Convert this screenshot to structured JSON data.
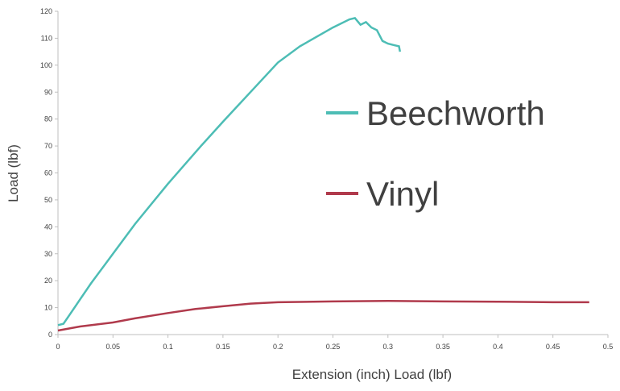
{
  "chart_data": {
    "type": "line",
    "xlabel": "Extension (inch) Load (lbf)",
    "ylabel": "Load (lbf)",
    "xlim": [
      0,
      0.5
    ],
    "xticks": [
      0,
      0.05,
      0.1,
      0.15,
      0.2,
      0.25,
      0.3,
      0.35,
      0.4,
      0.45,
      0.5
    ],
    "ylim": [
      0,
      120
    ],
    "yticks": [
      0,
      10,
      20,
      30,
      40,
      50,
      60,
      70,
      80,
      90,
      100,
      110,
      120
    ],
    "grid": false,
    "legend": "right",
    "series": [
      {
        "name": "Beechworth",
        "color": "#4dbdb5",
        "x": [
          0,
          0.005,
          0.01,
          0.02,
          0.03,
          0.05,
          0.07,
          0.1,
          0.13,
          0.15,
          0.175,
          0.2,
          0.22,
          0.25,
          0.265,
          0.27,
          0.275,
          0.28,
          0.285,
          0.29,
          0.295,
          0.3,
          0.305,
          0.31,
          0.311
        ],
        "values": [
          3.5,
          4,
          7,
          13,
          19,
          30,
          41,
          56,
          70,
          79,
          90,
          101,
          107,
          114,
          117,
          117.5,
          115,
          116,
          114,
          113,
          109,
          108,
          107.5,
          107,
          105
        ]
      },
      {
        "name": "Vinyl",
        "color": "#b03a4c",
        "x": [
          0,
          0.02,
          0.05,
          0.07,
          0.1,
          0.125,
          0.15,
          0.175,
          0.2,
          0.25,
          0.3,
          0.35,
          0.4,
          0.45,
          0.483
        ],
        "values": [
          1.5,
          3,
          4.5,
          6,
          8,
          9.5,
          10.5,
          11.5,
          12,
          12.3,
          12.5,
          12.3,
          12.2,
          12,
          12
        ]
      }
    ]
  }
}
